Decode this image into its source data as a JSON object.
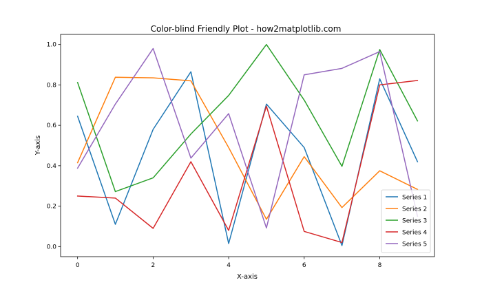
{
  "chart_data": {
    "type": "line",
    "title": "Color-blind Friendly Plot - how2matplotlib.com",
    "xlabel": "X-axis",
    "ylabel": "Y-axis",
    "xlim": [
      -0.45,
      9.45
    ],
    "ylim": [
      -0.05,
      1.05
    ],
    "x": [
      0,
      1,
      2,
      3,
      4,
      5,
      6,
      7,
      8,
      9
    ],
    "xticks": [
      0,
      2,
      4,
      6,
      8
    ],
    "yticks": [
      0.0,
      0.2,
      0.4,
      0.6,
      0.8,
      1.0
    ],
    "grid": false,
    "legend_position": "lower-right",
    "series": [
      {
        "name": "Series 1",
        "color": "#1f77b4",
        "values": [
          0.645,
          0.11,
          0.58,
          0.865,
          0.015,
          0.705,
          0.49,
          0.005,
          0.83,
          0.42
        ]
      },
      {
        "name": "Series 2",
        "color": "#ff7f0e",
        "values": [
          0.415,
          0.838,
          0.835,
          0.82,
          0.49,
          0.135,
          0.445,
          0.193,
          0.375,
          0.283
        ]
      },
      {
        "name": "Series 3",
        "color": "#2ca02c",
        "values": [
          0.812,
          0.272,
          0.34,
          0.557,
          0.748,
          1.0,
          0.725,
          0.397,
          0.975,
          0.622
        ]
      },
      {
        "name": "Series 4",
        "color": "#d62728",
        "values": [
          0.25,
          0.24,
          0.09,
          0.42,
          0.08,
          0.695,
          0.075,
          0.02,
          0.8,
          0.822
        ]
      },
      {
        "name": "Series 5",
        "color": "#9467bd",
        "values": [
          0.388,
          0.705,
          0.98,
          0.438,
          0.658,
          0.092,
          0.85,
          0.882,
          0.965,
          0.15
        ]
      }
    ]
  }
}
